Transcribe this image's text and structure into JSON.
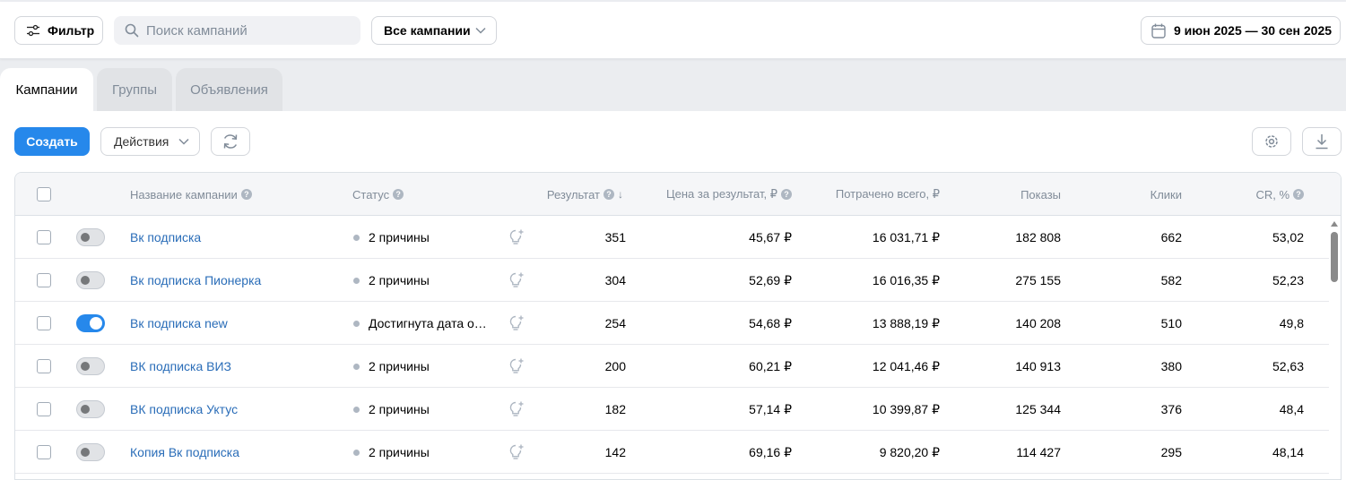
{
  "toolbar": {
    "filter_label": "Фильтр",
    "search_placeholder": "Поиск кампаний",
    "campaign_select": "Все кампании",
    "date_range": "9 июн 2025 — 30 сен 2025"
  },
  "tabs": [
    {
      "label": "Кампании",
      "active": true
    },
    {
      "label": "Группы",
      "active": false
    },
    {
      "label": "Объявления",
      "active": false
    }
  ],
  "actions": {
    "create_label": "Создать",
    "actions_label": "Действия"
  },
  "table": {
    "headers": {
      "name": "Название кампании",
      "status": "Статус",
      "result": "Результат",
      "price": "Цена за результат, ₽",
      "spent": "Потрачено всего, ₽",
      "impressions": "Показы",
      "clicks": "Клики",
      "cr": "CR, %"
    },
    "rows": [
      {
        "enabled": false,
        "name": "Вк подписка",
        "status": "2 причины",
        "result": "351",
        "price": "45,67 ₽",
        "spent": "16 031,71 ₽",
        "impressions": "182 808",
        "clicks": "662",
        "cr": "53,02"
      },
      {
        "enabled": false,
        "name": "Вк подписка Пионерка",
        "status": "2 причины",
        "result": "304",
        "price": "52,69 ₽",
        "spent": "16 016,35 ₽",
        "impressions": "275 155",
        "clicks": "582",
        "cr": "52,23"
      },
      {
        "enabled": true,
        "name": "Вк подписка new",
        "status": "Достигнута дата ос...",
        "result": "254",
        "price": "54,68 ₽",
        "spent": "13 888,19 ₽",
        "impressions": "140 208",
        "clicks": "510",
        "cr": "49,8"
      },
      {
        "enabled": false,
        "name": "ВК подписка ВИЗ",
        "status": "2 причины",
        "result": "200",
        "price": "60,21 ₽",
        "spent": "12 041,46 ₽",
        "impressions": "140 913",
        "clicks": "380",
        "cr": "52,63"
      },
      {
        "enabled": false,
        "name": "ВК подписка Уктус",
        "status": "2 причины",
        "result": "182",
        "price": "57,14 ₽",
        "spent": "10 399,87 ₽",
        "impressions": "125 344",
        "clicks": "376",
        "cr": "48,4"
      },
      {
        "enabled": false,
        "name": "Копия Вк подписка",
        "status": "2 причины",
        "result": "142",
        "price": "69,16 ₽",
        "spent": "9 820,20 ₽",
        "impressions": "114 427",
        "clicks": "295",
        "cr": "48,14"
      }
    ]
  },
  "colors": {
    "accent": "#2688eb",
    "link": "#2a6db8",
    "muted": "#818c99"
  }
}
